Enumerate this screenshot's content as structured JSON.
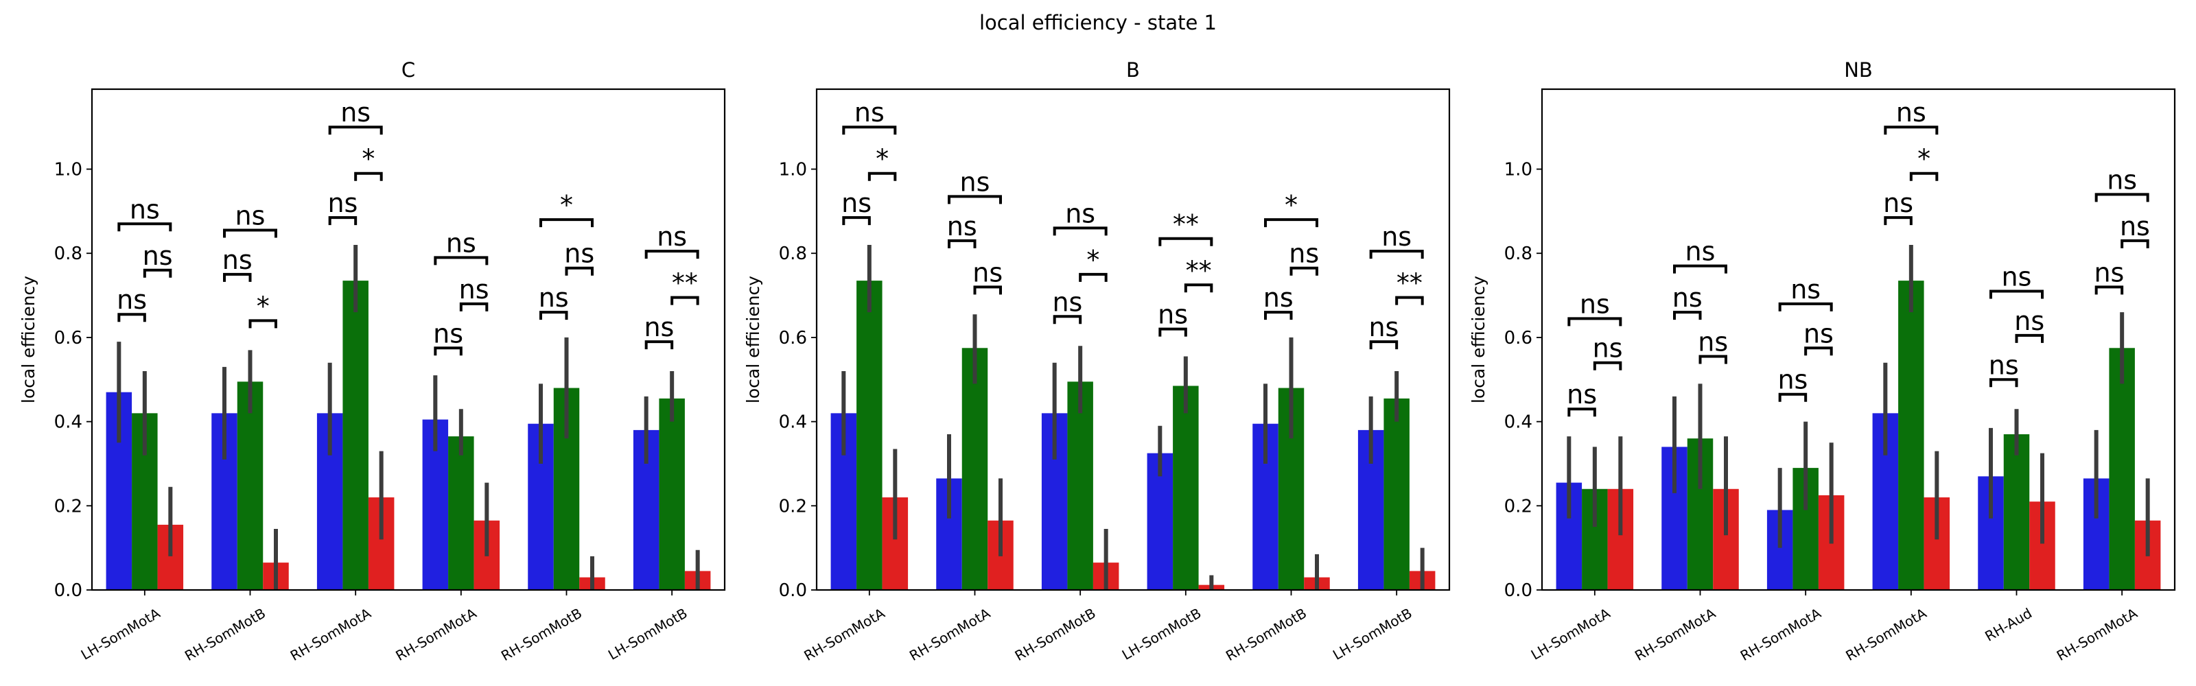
{
  "figure": {
    "suptitle": "local efficiency - state 1"
  },
  "colors": {
    "series": [
      "#2020e0",
      "#0a700a",
      "#e02020"
    ],
    "errorbar": "#3c3c3c",
    "axes": "#000000",
    "background": "#ffffff"
  },
  "chart_data": [
    {
      "type": "bar",
      "title": "C",
      "ylabel": "local efficiency",
      "xlabel": "",
      "ylim": [
        0,
        1.19
      ],
      "yticks": [
        "0.0",
        "0.2",
        "0.4",
        "0.6",
        "0.8",
        "1.0"
      ],
      "grid": false,
      "legend": "none",
      "categories": [
        "LH-SomMotA",
        "RH-SomMotB",
        "RH-SomMotA",
        "RH-SomMotA",
        "RH-SomMotB",
        "LH-SomMotB"
      ],
      "series": [
        {
          "values": [
            0.47,
            0.42,
            0.42,
            0.405,
            0.395,
            0.38
          ],
          "err_low": [
            0.35,
            0.31,
            0.32,
            0.33,
            0.3,
            0.3
          ],
          "err_high": [
            0.59,
            0.53,
            0.54,
            0.51,
            0.49,
            0.46
          ]
        },
        {
          "values": [
            0.42,
            0.495,
            0.735,
            0.365,
            0.48,
            0.455
          ],
          "err_low": [
            0.32,
            0.42,
            0.66,
            0.32,
            0.36,
            0.4
          ],
          "err_high": [
            0.52,
            0.57,
            0.82,
            0.43,
            0.6,
            0.52
          ]
        },
        {
          "values": [
            0.155,
            0.065,
            0.22,
            0.165,
            0.03,
            0.045
          ],
          "err_low": [
            0.08,
            0.0,
            0.12,
            0.08,
            0.0,
            0.0
          ],
          "err_high": [
            0.245,
            0.145,
            0.33,
            0.255,
            0.08,
            0.095
          ]
        }
      ],
      "annotations": [
        [
          {
            "pair": [
              0,
              1
            ],
            "y": 0.655,
            "label": "ns"
          },
          {
            "pair": [
              1,
              2
            ],
            "y": 0.76,
            "label": "ns"
          },
          {
            "pair": [
              0,
              2
            ],
            "y": 0.87,
            "label": "ns"
          }
        ],
        [
          {
            "pair": [
              0,
              1
            ],
            "y": 0.75,
            "label": "ns"
          },
          {
            "pair": [
              1,
              2
            ],
            "y": 0.64,
            "label": "*"
          },
          {
            "pair": [
              0,
              2
            ],
            "y": 0.855,
            "label": "ns"
          }
        ],
        [
          {
            "pair": [
              0,
              1
            ],
            "y": 0.885,
            "label": "ns"
          },
          {
            "pair": [
              1,
              2
            ],
            "y": 0.99,
            "label": "*"
          },
          {
            "pair": [
              0,
              2
            ],
            "y": 1.1,
            "label": "ns"
          }
        ],
        [
          {
            "pair": [
              0,
              1
            ],
            "y": 0.575,
            "label": "ns"
          },
          {
            "pair": [
              1,
              2
            ],
            "y": 0.68,
            "label": "ns"
          },
          {
            "pair": [
              0,
              2
            ],
            "y": 0.79,
            "label": "ns"
          }
        ],
        [
          {
            "pair": [
              0,
              1
            ],
            "y": 0.66,
            "label": "ns"
          },
          {
            "pair": [
              1,
              2
            ],
            "y": 0.765,
            "label": "ns"
          },
          {
            "pair": [
              0,
              2
            ],
            "y": 0.88,
            "label": "*"
          }
        ],
        [
          {
            "pair": [
              0,
              1
            ],
            "y": 0.59,
            "label": "ns"
          },
          {
            "pair": [
              1,
              2
            ],
            "y": 0.695,
            "label": "**"
          },
          {
            "pair": [
              0,
              2
            ],
            "y": 0.805,
            "label": "ns"
          }
        ]
      ]
    },
    {
      "type": "bar",
      "title": "B",
      "ylabel": "local efficiency",
      "xlabel": "",
      "ylim": [
        0,
        1.19
      ],
      "yticks": [
        "0.0",
        "0.2",
        "0.4",
        "0.6",
        "0.8",
        "1.0"
      ],
      "grid": false,
      "legend": "none",
      "categories": [
        "RH-SomMotA",
        "RH-SomMotA",
        "RH-SomMotB",
        "LH-SomMotB",
        "RH-SomMotB",
        "LH-SomMotB"
      ],
      "series": [
        {
          "values": [
            0.42,
            0.265,
            0.42,
            0.325,
            0.395,
            0.38
          ],
          "err_low": [
            0.32,
            0.17,
            0.31,
            0.27,
            0.3,
            0.3
          ],
          "err_high": [
            0.52,
            0.37,
            0.54,
            0.39,
            0.49,
            0.46
          ]
        },
        {
          "values": [
            0.735,
            0.575,
            0.495,
            0.485,
            0.48,
            0.455
          ],
          "err_low": [
            0.66,
            0.49,
            0.42,
            0.42,
            0.36,
            0.4
          ],
          "err_high": [
            0.82,
            0.655,
            0.58,
            0.555,
            0.6,
            0.52
          ]
        },
        {
          "values": [
            0.22,
            0.165,
            0.065,
            0.012,
            0.03,
            0.045
          ],
          "err_low": [
            0.12,
            0.08,
            0.0,
            0.0,
            0.0,
            0.0
          ],
          "err_high": [
            0.335,
            0.265,
            0.145,
            0.035,
            0.085,
            0.1
          ]
        }
      ],
      "annotations": [
        [
          {
            "pair": [
              0,
              1
            ],
            "y": 0.885,
            "label": "ns"
          },
          {
            "pair": [
              1,
              2
            ],
            "y": 0.99,
            "label": "*"
          },
          {
            "pair": [
              0,
              2
            ],
            "y": 1.1,
            "label": "ns"
          }
        ],
        [
          {
            "pair": [
              0,
              1
            ],
            "y": 0.83,
            "label": "ns"
          },
          {
            "pair": [
              1,
              2
            ],
            "y": 0.72,
            "label": "ns"
          },
          {
            "pair": [
              0,
              2
            ],
            "y": 0.935,
            "label": "ns"
          }
        ],
        [
          {
            "pair": [
              0,
              1
            ],
            "y": 0.65,
            "label": "ns"
          },
          {
            "pair": [
              1,
              2
            ],
            "y": 0.75,
            "label": "*"
          },
          {
            "pair": [
              0,
              2
            ],
            "y": 0.86,
            "label": "ns"
          }
        ],
        [
          {
            "pair": [
              0,
              1
            ],
            "y": 0.62,
            "label": "ns"
          },
          {
            "pair": [
              1,
              2
            ],
            "y": 0.725,
            "label": "**"
          },
          {
            "pair": [
              0,
              2
            ],
            "y": 0.835,
            "label": "**"
          }
        ],
        [
          {
            "pair": [
              0,
              1
            ],
            "y": 0.66,
            "label": "ns"
          },
          {
            "pair": [
              1,
              2
            ],
            "y": 0.765,
            "label": "ns"
          },
          {
            "pair": [
              0,
              2
            ],
            "y": 0.88,
            "label": "*"
          }
        ],
        [
          {
            "pair": [
              0,
              1
            ],
            "y": 0.59,
            "label": "ns"
          },
          {
            "pair": [
              1,
              2
            ],
            "y": 0.695,
            "label": "**"
          },
          {
            "pair": [
              0,
              2
            ],
            "y": 0.805,
            "label": "ns"
          }
        ]
      ]
    },
    {
      "type": "bar",
      "title": "NB",
      "ylabel": "local efficiency",
      "xlabel": "",
      "ylim": [
        0,
        1.19
      ],
      "yticks": [
        "0.0",
        "0.2",
        "0.4",
        "0.6",
        "0.8",
        "1.0"
      ],
      "grid": false,
      "legend": "none",
      "categories": [
        "LH-SomMotA",
        "RH-SomMotA",
        "RH-SomMotA",
        "RH-SomMotA",
        "RH-Aud",
        "RH-SomMotA"
      ],
      "series": [
        {
          "values": [
            0.255,
            0.34,
            0.19,
            0.42,
            0.27,
            0.265
          ],
          "err_low": [
            0.17,
            0.23,
            0.1,
            0.32,
            0.17,
            0.17
          ],
          "err_high": [
            0.365,
            0.46,
            0.29,
            0.54,
            0.385,
            0.38
          ]
        },
        {
          "values": [
            0.24,
            0.36,
            0.29,
            0.735,
            0.37,
            0.575
          ],
          "err_low": [
            0.15,
            0.24,
            0.19,
            0.66,
            0.32,
            0.49
          ],
          "err_high": [
            0.34,
            0.49,
            0.4,
            0.82,
            0.43,
            0.66
          ]
        },
        {
          "values": [
            0.24,
            0.24,
            0.225,
            0.22,
            0.21,
            0.165
          ],
          "err_low": [
            0.13,
            0.13,
            0.11,
            0.12,
            0.11,
            0.08
          ],
          "err_high": [
            0.365,
            0.365,
            0.35,
            0.33,
            0.325,
            0.265
          ]
        }
      ],
      "annotations": [
        [
          {
            "pair": [
              0,
              1
            ],
            "y": 0.43,
            "label": "ns"
          },
          {
            "pair": [
              1,
              2
            ],
            "y": 0.54,
            "label": "ns"
          },
          {
            "pair": [
              0,
              2
            ],
            "y": 0.645,
            "label": "ns"
          }
        ],
        [
          {
            "pair": [
              0,
              1
            ],
            "y": 0.66,
            "label": "ns"
          },
          {
            "pair": [
              1,
              2
            ],
            "y": 0.555,
            "label": "ns"
          },
          {
            "pair": [
              0,
              2
            ],
            "y": 0.77,
            "label": "ns"
          }
        ],
        [
          {
            "pair": [
              0,
              1
            ],
            "y": 0.465,
            "label": "ns"
          },
          {
            "pair": [
              1,
              2
            ],
            "y": 0.575,
            "label": "ns"
          },
          {
            "pair": [
              0,
              2
            ],
            "y": 0.68,
            "label": "ns"
          }
        ],
        [
          {
            "pair": [
              0,
              1
            ],
            "y": 0.885,
            "label": "ns"
          },
          {
            "pair": [
              1,
              2
            ],
            "y": 0.99,
            "label": "*"
          },
          {
            "pair": [
              0,
              2
            ],
            "y": 1.1,
            "label": "ns"
          }
        ],
        [
          {
            "pair": [
              0,
              1
            ],
            "y": 0.5,
            "label": "ns"
          },
          {
            "pair": [
              1,
              2
            ],
            "y": 0.605,
            "label": "ns"
          },
          {
            "pair": [
              0,
              2
            ],
            "y": 0.71,
            "label": "ns"
          }
        ],
        [
          {
            "pair": [
              0,
              1
            ],
            "y": 0.72,
            "label": "ns"
          },
          {
            "pair": [
              1,
              2
            ],
            "y": 0.83,
            "label": "ns"
          },
          {
            "pair": [
              0,
              2
            ],
            "y": 0.94,
            "label": "ns"
          }
        ]
      ]
    }
  ]
}
